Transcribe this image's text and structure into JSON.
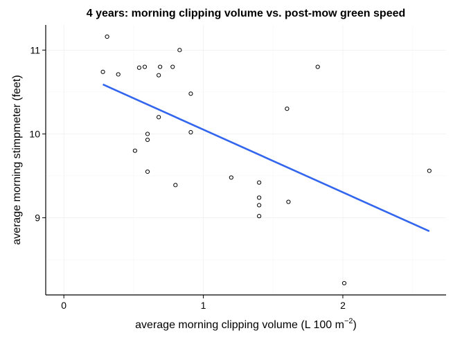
{
  "chart_data": {
    "type": "scatter",
    "title": "4 years: morning clipping volume vs. post-mow green speed",
    "xlabel_main": "average morning clipping volume (L 100 m",
    "xlabel_exp": "−2",
    "xlabel_close": ")",
    "ylabel": "average morning stimpmeter (feet)",
    "xlim": [
      -0.13,
      2.74
    ],
    "ylim": [
      8.08,
      11.3
    ],
    "x_ticks": [
      0,
      1,
      2
    ],
    "x_tick_labels": [
      "0",
      "1",
      "2"
    ],
    "y_ticks": [
      9,
      10,
      11
    ],
    "y_tick_labels": [
      "9",
      "10",
      "11"
    ],
    "grid": true,
    "points": [
      {
        "x": 0.31,
        "y": 11.16
      },
      {
        "x": 0.28,
        "y": 10.74
      },
      {
        "x": 0.39,
        "y": 10.71
      },
      {
        "x": 0.54,
        "y": 10.79
      },
      {
        "x": 0.58,
        "y": 10.8
      },
      {
        "x": 0.69,
        "y": 10.8
      },
      {
        "x": 0.68,
        "y": 10.7
      },
      {
        "x": 0.78,
        "y": 10.8
      },
      {
        "x": 0.83,
        "y": 11.0
      },
      {
        "x": 0.91,
        "y": 10.48
      },
      {
        "x": 0.68,
        "y": 10.2
      },
      {
        "x": 0.6,
        "y": 10.0
      },
      {
        "x": 0.6,
        "y": 9.93
      },
      {
        "x": 0.51,
        "y": 9.8
      },
      {
        "x": 0.91,
        "y": 10.02
      },
      {
        "x": 0.6,
        "y": 9.55
      },
      {
        "x": 0.8,
        "y": 9.39
      },
      {
        "x": 1.2,
        "y": 9.48
      },
      {
        "x": 1.4,
        "y": 9.42
      },
      {
        "x": 1.4,
        "y": 9.24
      },
      {
        "x": 1.4,
        "y": 9.15
      },
      {
        "x": 1.4,
        "y": 9.02
      },
      {
        "x": 1.6,
        "y": 10.3
      },
      {
        "x": 1.61,
        "y": 9.19
      },
      {
        "x": 1.82,
        "y": 10.8
      },
      {
        "x": 2.01,
        "y": 8.22
      },
      {
        "x": 2.62,
        "y": 9.56
      }
    ],
    "fit_line": {
      "x": [
        0.28,
        2.62
      ],
      "y": [
        10.59,
        8.84
      ],
      "color": "#3366ee"
    }
  }
}
